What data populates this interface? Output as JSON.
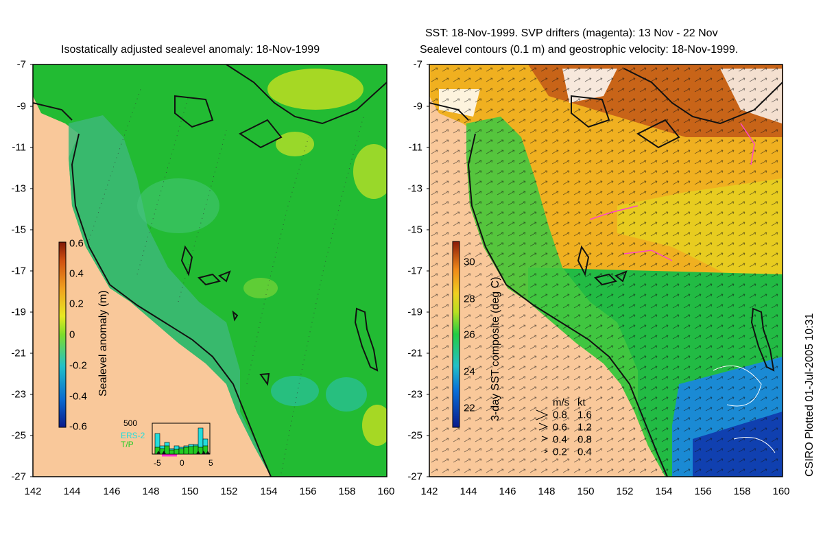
{
  "left_panel": {
    "title": "Isostatically adjusted sealevel anomaly: 18-Nov-1999",
    "colorbar": {
      "label": "Sealevel anomaly (m)",
      "ticks": [
        "0.6",
        "0.4",
        "0.2",
        "0",
        "-0.2",
        "-0.4",
        "-0.6"
      ]
    },
    "histogram": {
      "ymax_label": "500",
      "x_ticks": [
        "-5",
        "0",
        "5"
      ],
      "legend": [
        "ERS-2",
        "T/P"
      ],
      "legend_colors": [
        "#22dddd",
        "#22cc22"
      ]
    }
  },
  "right_panel": {
    "title_line1": "SST: 18-Nov-1999. SVP drifters (magenta): 13 Nov - 22 Nov",
    "title_line2": "Sealevel contours (0.1 m) and geostrophic velocity: 18-Nov-1999.",
    "colorbar": {
      "label": "3-day SST composite (deg C)",
      "ticks": [
        "30",
        "28",
        "26",
        "24",
        "22"
      ]
    },
    "velocity_legend": {
      "header_ms": "m/s",
      "header_kt": "kt",
      "rows": [
        {
          "ms": "0.8",
          "kt": "1.6"
        },
        {
          "ms": "0.6",
          "kt": "1.2"
        },
        {
          "ms": "0.4",
          "kt": "0.8"
        },
        {
          "ms": "0.2",
          "kt": "0.4"
        }
      ]
    }
  },
  "axes": {
    "lat_ticks": [
      "-7",
      "-9",
      "-11",
      "-13",
      "-15",
      "-17",
      "-19",
      "-21",
      "-23",
      "-25",
      "-27"
    ],
    "lon_ticks": [
      "142",
      "144",
      "146",
      "148",
      "150",
      "152",
      "154",
      "156",
      "158",
      "160"
    ]
  },
  "credit": "CSIRO Plotted 01-Jul-2005 10:31",
  "colors": {
    "land": "#f9c89a",
    "sla_sea": "#22bb33",
    "shelf": "#3cb878",
    "sst_warm": "#f0a020",
    "sst_cool": "#1a8ad4"
  }
}
